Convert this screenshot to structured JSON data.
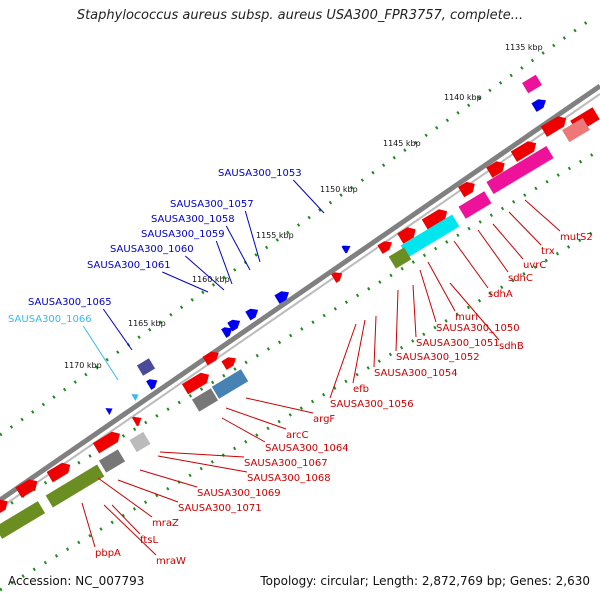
{
  "title": "Staphylococcus aureus subsp. aureus USA300_FPR3757, complete...",
  "footer": {
    "accession": "Accession: NC_007793",
    "summary": "Topology: circular; Length: 2,872,769 bp; Genes: 2,630"
  },
  "colors": {
    "backbone": "#808080",
    "tick": "#1e8c1e",
    "label_red": "#cc0000",
    "label_blue": "#0000cc",
    "label_cyan": "#33bbee",
    "gene_red": "#ee0000",
    "gene_blue": "#0000ee",
    "gene_magenta": "#ee1199",
    "gene_cyan": "#00e5ee",
    "gene_olive": "#6b8e23",
    "gene_gray": "#777777",
    "gene_steel": "#4682b4",
    "gene_navy": "#4b4b9b"
  },
  "kbp_labels": [
    "1135 kbp",
    "1140 kbp",
    "1145 kbp",
    "1150 kbp",
    "1155 kbp",
    "1160 kbp",
    "1165 kbp",
    "1170 kbp"
  ],
  "genes_top": [
    "SAUSA300_1053",
    "SAUSA300_1057",
    "SAUSA300_1058",
    "SAUSA300_1059",
    "SAUSA300_1060",
    "SAUSA300_1061",
    "SAUSA300_1065",
    "SAUSA300_1066"
  ],
  "genes_bottom": [
    "mutS2",
    "trx",
    "uvrC",
    "sdhC",
    "sdhA",
    "murI",
    "SAUSA300_1050",
    "sdhB",
    "SAUSA300_1051",
    "SAUSA300_1052",
    "SAUSA300_1054",
    "efb",
    "SAUSA300_1056",
    "argF",
    "arcC",
    "SAUSA300_1064",
    "SAUSA300_1067",
    "SAUSA300_1068",
    "SAUSA300_1069",
    "SAUSA300_1071",
    "mraZ",
    "ftsL",
    "pbpA",
    "mraW"
  ]
}
